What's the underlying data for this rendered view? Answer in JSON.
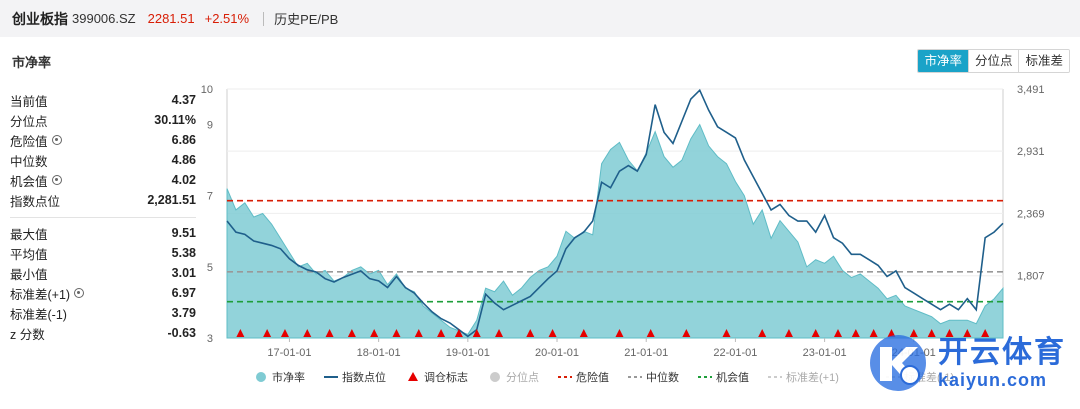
{
  "header": {
    "name": "创业板指",
    "code": "399006.SZ",
    "price": "2281.51",
    "change": "+2.51%",
    "history_link": "历史PE/PB"
  },
  "section_title": "市净率",
  "tabs": [
    {
      "label": "市净率",
      "active": true
    },
    {
      "label": "分位点",
      "active": false
    },
    {
      "label": "标准差",
      "active": false
    }
  ],
  "stats_top": [
    {
      "label": "当前值",
      "value": "4.37",
      "gear": false
    },
    {
      "label": "分位点",
      "value": "30.11%",
      "gear": false
    },
    {
      "label": "危险值",
      "value": "6.86",
      "gear": true
    },
    {
      "label": "中位数",
      "value": "4.86",
      "gear": false
    },
    {
      "label": "机会值",
      "value": "4.02",
      "gear": true
    },
    {
      "label": "指数点位",
      "value": "2,281.51",
      "gear": false
    }
  ],
  "stats_bottom": [
    {
      "label": "最大值",
      "value": "9.51",
      "gear": false
    },
    {
      "label": "平均值",
      "value": "5.38",
      "gear": false
    },
    {
      "label": "最小值",
      "value": "3.01",
      "gear": false
    },
    {
      "label": "标准差(+1)",
      "value": "6.97",
      "gear": true
    },
    {
      "label": "标准差(-1)",
      "value": "3.79",
      "gear": false
    },
    {
      "label": "z 分数",
      "value": "-0.63",
      "gear": false
    }
  ],
  "colors": {
    "area": "#7fcbd3",
    "index_line": "#1f5f8b",
    "danger": "#d81e06",
    "median": "#999999",
    "opportunity": "#1e9e3a",
    "marker": "#e60000",
    "tab_active": "#1aa3c8"
  },
  "legend": [
    {
      "label": "市净率",
      "kind": "dot",
      "color": "#7fcbd3"
    },
    {
      "label": "指数点位",
      "kind": "line",
      "color": "#1f5f8b"
    },
    {
      "label": "调仓标志",
      "kind": "triangle",
      "color": "#e60000"
    },
    {
      "label": "分位点",
      "kind": "dot",
      "color": "#cccccc"
    },
    {
      "label": "危险值",
      "kind": "dash",
      "color": "#d81e06"
    },
    {
      "label": "中位数",
      "kind": "dash",
      "color": "#999999"
    },
    {
      "label": "机会值",
      "kind": "dash",
      "color": "#1e9e3a"
    },
    {
      "label": "标准差(+1)",
      "kind": "dash",
      "color": "#cccccc"
    },
    {
      "label": "标准差(-1)",
      "kind": "dash",
      "color": "#cccccc"
    }
  ],
  "watermark": {
    "cn": "开云体育",
    "en": "kaiyun.com"
  },
  "chart_data": {
    "type": "area",
    "left_axis": {
      "ticks": [
        3,
        5,
        7,
        9,
        10
      ],
      "range": [
        3,
        10
      ]
    },
    "right_axis": {
      "ticks": [
        "3,491",
        "2,931",
        "2,369",
        "1,807"
      ],
      "tick_values": [
        3491,
        2931,
        2369,
        1807
      ],
      "range": [
        1245,
        3491
      ]
    },
    "x_ticks": [
      "17-01-01",
      "18-01-01",
      "19-01-01",
      "20-01-01",
      "21-01-01",
      "22-01-01",
      "23-01-01",
      "24-01-01"
    ],
    "x_range": [
      2016.3,
      2025.0
    ],
    "x_tick_values": [
      2017,
      2018,
      2019,
      2020,
      2021,
      2022,
      2023,
      2024
    ],
    "reference_lines": {
      "danger": 6.86,
      "median": 4.86,
      "opportunity": 4.02
    },
    "series": [
      {
        "name": "市净率",
        "x": [
          2016.3,
          2016.4,
          2016.5,
          2016.6,
          2016.7,
          2016.8,
          2016.9,
          2017.0,
          2017.1,
          2017.2,
          2017.3,
          2017.4,
          2017.5,
          2017.6,
          2017.7,
          2017.8,
          2017.9,
          2018.0,
          2018.1,
          2018.2,
          2018.3,
          2018.4,
          2018.5,
          2018.6,
          2018.7,
          2018.8,
          2018.9,
          2019.0,
          2019.1,
          2019.2,
          2019.3,
          2019.4,
          2019.5,
          2019.6,
          2019.7,
          2019.8,
          2019.9,
          2020.0,
          2020.1,
          2020.2,
          2020.3,
          2020.4,
          2020.5,
          2020.6,
          2020.7,
          2020.8,
          2020.9,
          2021.0,
          2021.1,
          2021.2,
          2021.3,
          2021.4,
          2021.5,
          2021.6,
          2021.7,
          2021.8,
          2021.9,
          2022.0,
          2022.1,
          2022.2,
          2022.3,
          2022.4,
          2022.5,
          2022.6,
          2022.7,
          2022.8,
          2022.9,
          2023.0,
          2023.1,
          2023.2,
          2023.3,
          2023.4,
          2023.5,
          2023.6,
          2023.7,
          2023.8,
          2023.9,
          2024.0,
          2024.1,
          2024.2,
          2024.3,
          2024.4,
          2024.5,
          2024.6,
          2024.7,
          2024.8,
          2024.9,
          2025.0
        ],
        "values": [
          7.2,
          6.6,
          6.8,
          6.4,
          6.5,
          6.2,
          5.8,
          5.4,
          5.0,
          5.1,
          4.8,
          4.9,
          4.6,
          4.7,
          4.9,
          5.0,
          4.8,
          4.9,
          4.5,
          4.8,
          4.4,
          4.3,
          3.9,
          3.7,
          3.5,
          3.3,
          3.2,
          3.1,
          3.5,
          4.4,
          4.3,
          4.6,
          4.2,
          4.4,
          4.7,
          4.9,
          5.0,
          5.3,
          6.0,
          5.8,
          6.0,
          5.9,
          7.9,
          8.3,
          8.5,
          8.0,
          7.7,
          8.2,
          8.8,
          8.1,
          7.8,
          8.0,
          8.6,
          9.0,
          8.4,
          8.1,
          7.9,
          7.4,
          7.0,
          6.2,
          6.6,
          5.8,
          6.3,
          6.0,
          5.7,
          5.0,
          5.2,
          5.1,
          5.3,
          4.9,
          4.7,
          4.8,
          4.6,
          4.4,
          4.1,
          4.2,
          3.9,
          3.8,
          3.7,
          3.6,
          3.4,
          3.5,
          3.5,
          3.5,
          3.4,
          3.9,
          4.1,
          4.4
        ]
      },
      {
        "name": "指数点位",
        "x": [
          2016.3,
          2016.4,
          2016.5,
          2016.6,
          2016.7,
          2016.8,
          2016.9,
          2017.0,
          2017.1,
          2017.2,
          2017.3,
          2017.4,
          2017.5,
          2017.6,
          2017.7,
          2017.8,
          2017.9,
          2018.0,
          2018.1,
          2018.2,
          2018.3,
          2018.4,
          2018.5,
          2018.6,
          2018.7,
          2018.8,
          2018.9,
          2019.0,
          2019.1,
          2019.2,
          2019.3,
          2019.4,
          2019.5,
          2019.6,
          2019.7,
          2019.8,
          2019.9,
          2020.0,
          2020.1,
          2020.2,
          2020.3,
          2020.4,
          2020.5,
          2020.6,
          2020.7,
          2020.8,
          2020.9,
          2021.0,
          2021.1,
          2021.2,
          2021.3,
          2021.4,
          2021.5,
          2021.6,
          2021.7,
          2021.8,
          2021.9,
          2022.0,
          2022.1,
          2022.2,
          2022.3,
          2022.4,
          2022.5,
          2022.6,
          2022.7,
          2022.8,
          2022.9,
          2023.0,
          2023.1,
          2023.2,
          2023.3,
          2023.4,
          2023.5,
          2023.6,
          2023.7,
          2023.8,
          2023.9,
          2024.0,
          2024.1,
          2024.2,
          2024.3,
          2024.4,
          2024.5,
          2024.6,
          2024.7,
          2024.8,
          2024.9,
          2025.0
        ],
        "values": [
          2300,
          2200,
          2180,
          2120,
          2100,
          2080,
          2050,
          1960,
          1900,
          1860,
          1840,
          1780,
          1750,
          1790,
          1820,
          1850,
          1780,
          1760,
          1700,
          1800,
          1700,
          1650,
          1560,
          1480,
          1420,
          1380,
          1320,
          1260,
          1320,
          1640,
          1560,
          1500,
          1540,
          1580,
          1620,
          1700,
          1780,
          1850,
          2050,
          2150,
          2200,
          2300,
          2650,
          2600,
          2750,
          2800,
          2750,
          2900,
          3350,
          3100,
          3000,
          3200,
          3400,
          3480,
          3300,
          3150,
          3100,
          3050,
          2850,
          2700,
          2550,
          2400,
          2450,
          2350,
          2300,
          2300,
          2200,
          2350,
          2150,
          2100,
          2000,
          2000,
          1950,
          1900,
          1800,
          1850,
          1700,
          1650,
          1600,
          1550,
          1500,
          1550,
          1500,
          1600,
          1500,
          2150,
          2200,
          2280
        ]
      }
    ],
    "rebalance_markers_x": [
      2016.45,
      2016.75,
      2016.95,
      2017.2,
      2017.45,
      2017.7,
      2017.95,
      2018.2,
      2018.45,
      2018.7,
      2018.9,
      2019.1,
      2019.35,
      2019.7,
      2019.95,
      2020.3,
      2020.7,
      2021.05,
      2021.45,
      2021.9,
      2022.3,
      2022.6,
      2022.9,
      2023.15,
      2023.35,
      2023.55,
      2023.75,
      2024.0,
      2024.2,
      2024.4,
      2024.6,
      2024.8
    ]
  }
}
